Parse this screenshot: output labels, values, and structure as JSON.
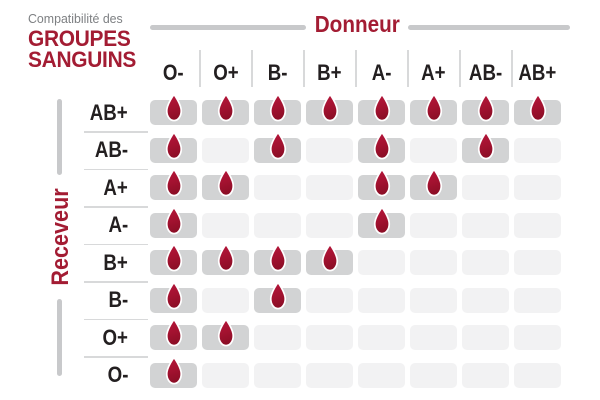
{
  "title": {
    "prefix": "Compatibilité des",
    "main1": "GROUPES",
    "main2": "SANGUINS"
  },
  "axes": {
    "donor": "Donneur",
    "receiver": "Receveur"
  },
  "chart_data": {
    "type": "heatmap",
    "title": "Compatibilité des groupes sanguins",
    "x_label": "Donneur",
    "y_label": "Receveur",
    "columns": [
      "O-",
      "O+",
      "B-",
      "B+",
      "A-",
      "A+",
      "AB-",
      "AB+"
    ],
    "rows": [
      "AB+",
      "AB-",
      "A+",
      "A-",
      "B+",
      "B-",
      "O+",
      "O-"
    ],
    "compatible_marker": "blood-drop-icon",
    "legend": "drop = donor compatible with receiver",
    "matrix": [
      [
        1,
        1,
        1,
        1,
        1,
        1,
        1,
        1
      ],
      [
        1,
        0,
        1,
        0,
        1,
        0,
        1,
        0
      ],
      [
        1,
        1,
        0,
        0,
        1,
        1,
        0,
        0
      ],
      [
        1,
        0,
        0,
        0,
        1,
        0,
        0,
        0
      ],
      [
        1,
        1,
        1,
        1,
        0,
        0,
        0,
        0
      ],
      [
        1,
        0,
        1,
        0,
        0,
        0,
        0,
        0
      ],
      [
        1,
        1,
        0,
        0,
        0,
        0,
        0,
        0
      ],
      [
        1,
        0,
        0,
        0,
        0,
        0,
        0,
        0
      ]
    ]
  },
  "colors": {
    "brand_red": "#a31c33",
    "drop_red_top": "#b8163c",
    "drop_red_mid": "#a31230",
    "drop_red_bottom": "#8c0e26",
    "drop_outline": "#ffffff",
    "cell_filled": "#d2d3d4",
    "cell_empty": "#f2f2f3",
    "divider_gray": "#d8d9da",
    "dash_gray": "#c8c9cb",
    "label_ink": "#231f20",
    "subtitle_gray": "#7e8083"
  }
}
